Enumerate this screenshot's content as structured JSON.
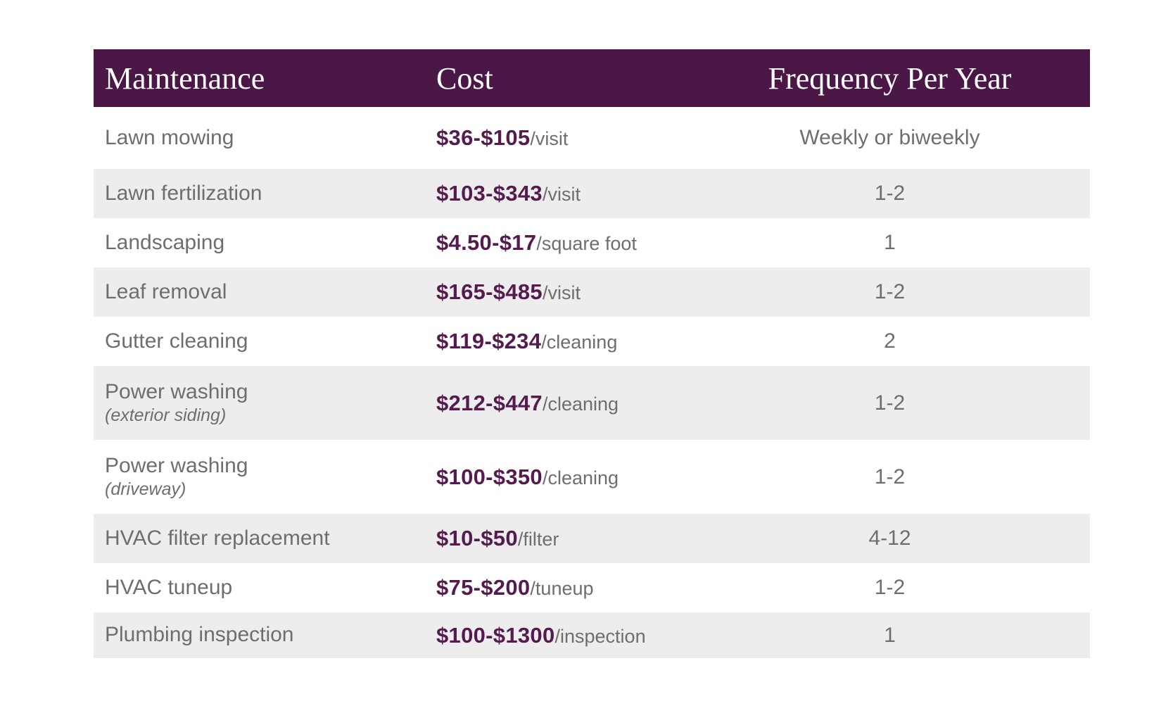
{
  "colors": {
    "header_bg": "#4a1747",
    "header_text": "#ffffff",
    "cost_text": "#551a4e",
    "body_text": "#6d6e70",
    "row_shaded": "#ededee",
    "row_plain": "#ffffff"
  },
  "table": {
    "columns": [
      "Maintenance",
      "Cost",
      "Frequency Per Year"
    ],
    "rows": [
      {
        "label": "Lawn mowing",
        "sublabel": "",
        "cost": "$36-$105",
        "unit": "/visit",
        "frequency": "Weekly or biweekly"
      },
      {
        "label": "Lawn fertilization",
        "sublabel": "",
        "cost": "$103-$343",
        "unit": "/visit",
        "frequency": "1-2"
      },
      {
        "label": "Landscaping",
        "sublabel": "",
        "cost": "$4.50-$17",
        "unit": "/square foot",
        "frequency": "1"
      },
      {
        "label": "Leaf removal",
        "sublabel": "",
        "cost": "$165-$485",
        "unit": "/visit",
        "frequency": "1-2"
      },
      {
        "label": "Gutter cleaning",
        "sublabel": "",
        "cost": "$119-$234",
        "unit": "/cleaning",
        "frequency": "2"
      },
      {
        "label": "Power washing",
        "sublabel": "(exterior siding)",
        "cost": "$212-$447",
        "unit": "/cleaning",
        "frequency": "1-2"
      },
      {
        "label": "Power washing",
        "sublabel": "(driveway)",
        "cost": "$100-$350",
        "unit": "/cleaning",
        "frequency": "1-2"
      },
      {
        "label": "HVAC filter replacement",
        "sublabel": "",
        "cost": "$10-$50",
        "unit": "/filter",
        "frequency": "4-12"
      },
      {
        "label": "HVAC tuneup",
        "sublabel": "",
        "cost": "$75-$200",
        "unit": "/tuneup",
        "frequency": "1-2"
      },
      {
        "label": "Plumbing inspection",
        "sublabel": "",
        "cost": "$100-$1300",
        "unit": "/inspection",
        "frequency": "1"
      }
    ]
  },
  "chart_data": {
    "type": "table",
    "title": "",
    "columns": [
      "Maintenance",
      "Cost",
      "Frequency Per Year"
    ],
    "rows": [
      [
        "Lawn mowing",
        "$36-$105/visit",
        "Weekly or biweekly"
      ],
      [
        "Lawn fertilization",
        "$103-$343/visit",
        "1-2"
      ],
      [
        "Landscaping",
        "$4.50-$17/square foot",
        "1"
      ],
      [
        "Leaf removal",
        "$165-$485/visit",
        "1-2"
      ],
      [
        "Gutter cleaning",
        "$119-$234/cleaning",
        "2"
      ],
      [
        "Power washing (exterior siding)",
        "$212-$447/cleaning",
        "1-2"
      ],
      [
        "Power washing (driveway)",
        "$100-$350/cleaning",
        "1-2"
      ],
      [
        "HVAC filter replacement",
        "$10-$50/filter",
        "4-12"
      ],
      [
        "HVAC tuneup",
        "$75-$200/tuneup",
        "1-2"
      ],
      [
        "Plumbing inspection",
        "$100-$1300/inspection",
        "1"
      ]
    ]
  }
}
